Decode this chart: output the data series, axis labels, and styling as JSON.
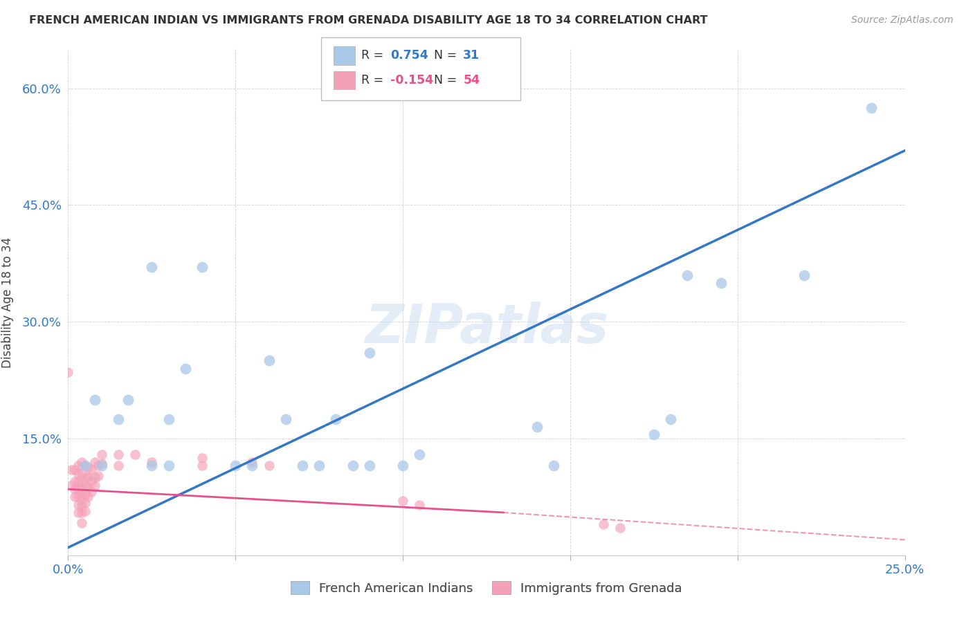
{
  "title": "FRENCH AMERICAN INDIAN VS IMMIGRANTS FROM GRENADA DISABILITY AGE 18 TO 34 CORRELATION CHART",
  "source": "Source: ZipAtlas.com",
  "ylabel": "Disability Age 18 to 34",
  "xlim": [
    0.0,
    0.25
  ],
  "ylim": [
    0.0,
    0.65
  ],
  "xticks": [
    0.0,
    0.05,
    0.1,
    0.15,
    0.2,
    0.25
  ],
  "yticks": [
    0.0,
    0.15,
    0.3,
    0.45,
    0.6
  ],
  "xticklabels": [
    "0.0%",
    "",
    "",
    "",
    "",
    "25.0%"
  ],
  "yticklabels": [
    "",
    "15.0%",
    "30.0%",
    "45.0%",
    "60.0%"
  ],
  "blue_R": 0.754,
  "blue_N": 31,
  "pink_R": -0.154,
  "pink_N": 54,
  "watermark": "ZIPatlas",
  "blue_color": "#a8c8e8",
  "pink_color": "#f4a0b8",
  "blue_line_color": "#3378c8",
  "pink_line_color": "#e8508a",
  "blue_line": [
    [
      0.0,
      0.01
    ],
    [
      0.25,
      0.52
    ]
  ],
  "pink_line_solid": [
    [
      0.0,
      0.085
    ],
    [
      0.13,
      0.055
    ]
  ],
  "pink_line_dash": [
    [
      0.13,
      0.055
    ],
    [
      0.25,
      0.02
    ]
  ],
  "blue_scatter": [
    [
      0.005,
      0.115
    ],
    [
      0.008,
      0.2
    ],
    [
      0.01,
      0.115
    ],
    [
      0.015,
      0.175
    ],
    [
      0.018,
      0.2
    ],
    [
      0.025,
      0.37
    ],
    [
      0.025,
      0.115
    ],
    [
      0.03,
      0.175
    ],
    [
      0.03,
      0.115
    ],
    [
      0.035,
      0.24
    ],
    [
      0.04,
      0.37
    ],
    [
      0.05,
      0.115
    ],
    [
      0.055,
      0.115
    ],
    [
      0.06,
      0.25
    ],
    [
      0.065,
      0.175
    ],
    [
      0.07,
      0.115
    ],
    [
      0.075,
      0.115
    ],
    [
      0.08,
      0.175
    ],
    [
      0.085,
      0.115
    ],
    [
      0.09,
      0.26
    ],
    [
      0.09,
      0.115
    ],
    [
      0.1,
      0.115
    ],
    [
      0.105,
      0.13
    ],
    [
      0.14,
      0.165
    ],
    [
      0.145,
      0.115
    ],
    [
      0.175,
      0.155
    ],
    [
      0.18,
      0.175
    ],
    [
      0.185,
      0.36
    ],
    [
      0.195,
      0.35
    ],
    [
      0.22,
      0.36
    ],
    [
      0.24,
      0.575
    ]
  ],
  "pink_scatter": [
    [
      0.0,
      0.235
    ],
    [
      0.001,
      0.11
    ],
    [
      0.001,
      0.09
    ],
    [
      0.002,
      0.11
    ],
    [
      0.002,
      0.095
    ],
    [
      0.002,
      0.085
    ],
    [
      0.002,
      0.075
    ],
    [
      0.003,
      0.115
    ],
    [
      0.003,
      0.105
    ],
    [
      0.003,
      0.095
    ],
    [
      0.003,
      0.085
    ],
    [
      0.003,
      0.075
    ],
    [
      0.003,
      0.065
    ],
    [
      0.003,
      0.055
    ],
    [
      0.004,
      0.12
    ],
    [
      0.004,
      0.105
    ],
    [
      0.004,
      0.095
    ],
    [
      0.004,
      0.085
    ],
    [
      0.004,
      0.075
    ],
    [
      0.004,
      0.065
    ],
    [
      0.004,
      0.055
    ],
    [
      0.004,
      0.042
    ],
    [
      0.005,
      0.115
    ],
    [
      0.005,
      0.1
    ],
    [
      0.005,
      0.09
    ],
    [
      0.005,
      0.078
    ],
    [
      0.005,
      0.067
    ],
    [
      0.005,
      0.057
    ],
    [
      0.006,
      0.113
    ],
    [
      0.006,
      0.1
    ],
    [
      0.006,
      0.088
    ],
    [
      0.006,
      0.075
    ],
    [
      0.007,
      0.11
    ],
    [
      0.007,
      0.095
    ],
    [
      0.007,
      0.082
    ],
    [
      0.008,
      0.12
    ],
    [
      0.008,
      0.1
    ],
    [
      0.008,
      0.09
    ],
    [
      0.009,
      0.115
    ],
    [
      0.009,
      0.102
    ],
    [
      0.01,
      0.13
    ],
    [
      0.01,
      0.118
    ],
    [
      0.015,
      0.13
    ],
    [
      0.015,
      0.115
    ],
    [
      0.02,
      0.13
    ],
    [
      0.025,
      0.12
    ],
    [
      0.04,
      0.125
    ],
    [
      0.04,
      0.115
    ],
    [
      0.055,
      0.12
    ],
    [
      0.06,
      0.115
    ],
    [
      0.1,
      0.07
    ],
    [
      0.105,
      0.065
    ],
    [
      0.16,
      0.04
    ],
    [
      0.165,
      0.035
    ]
  ]
}
